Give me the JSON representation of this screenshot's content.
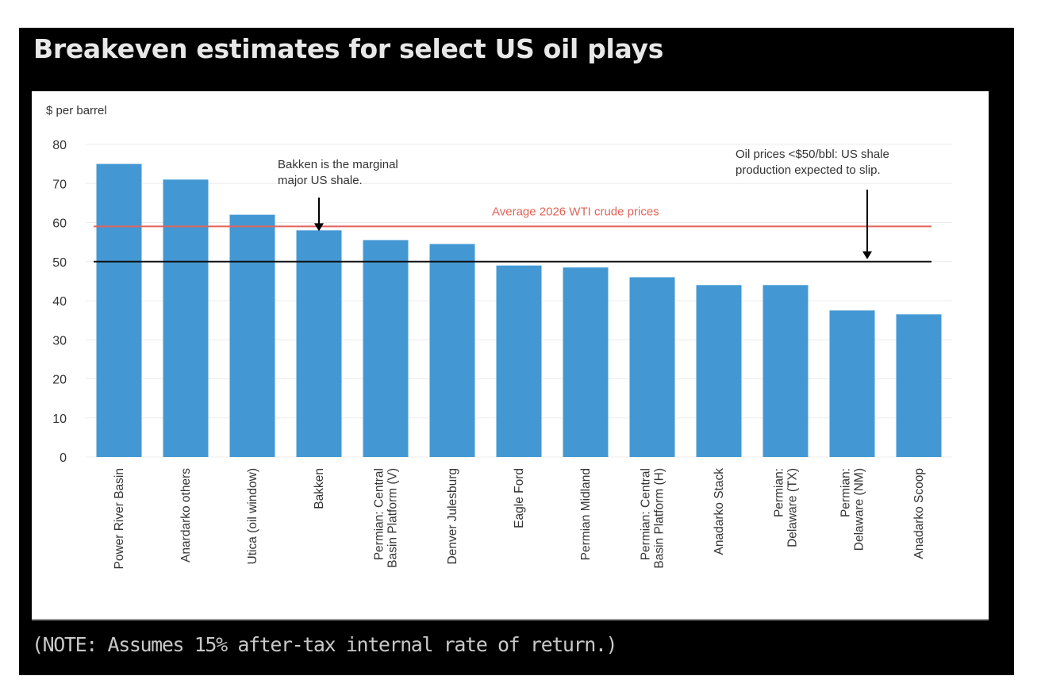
{
  "title": "Breakeven estimates for select US oil plays",
  "note": "(NOTE: Assumes 15% after-tax internal rate of return.)",
  "colors": {
    "bar": "#4398d4",
    "wti_line": "#e0645a",
    "threshold_line": "#111111",
    "gridline": "#ececec",
    "axis_text": "#333333",
    "annotation_text": "#333333",
    "wti_label_text": "#e0645a"
  },
  "chart_data": {
    "type": "bar",
    "title": "Breakeven estimates for select US oil plays",
    "xlabel": "",
    "ylabel": "$ per barrel",
    "ylim": [
      0,
      80
    ],
    "yticks": [
      0,
      10,
      20,
      30,
      40,
      50,
      60,
      70,
      80
    ],
    "grid": true,
    "legend": "none",
    "categories": [
      [
        "Power River Basin"
      ],
      [
        "Anardarko others"
      ],
      [
        "Utica (oil window)"
      ],
      [
        "Bakken"
      ],
      [
        "Permian: Central",
        "Basin Platform (V)"
      ],
      [
        "Denver Julesburg"
      ],
      [
        "Eagle Ford"
      ],
      [
        "Permian Midland"
      ],
      [
        "Permian: Central",
        "Basin Platform (H)"
      ],
      [
        "Anadarko Stack"
      ],
      [
        "Permian:",
        "Delaware (TX)"
      ],
      [
        "Permian:",
        "Delaware (NM)"
      ],
      [
        "Anadarko Scoop"
      ]
    ],
    "values": [
      75,
      71,
      62,
      58,
      55.5,
      54.5,
      49,
      48.5,
      46,
      44,
      44,
      37.5,
      36.5
    ],
    "reference_lines": [
      {
        "name": "wti",
        "value": 59,
        "label": "Average 2026 WTI crude prices",
        "color": "#e0645a"
      },
      {
        "name": "threshold",
        "value": 50,
        "label": "",
        "color": "#111111"
      }
    ],
    "annotations": [
      {
        "name": "bakken-annotation",
        "lines": [
          "Bakken is the marginal",
          "major US shale."
        ],
        "target_category_index": 3,
        "target_value": 58
      },
      {
        "name": "shale-slip-annotation",
        "lines": [
          "Oil prices <$50/bbl: US shale",
          "production expected to slip."
        ],
        "target_category_index": 11.4,
        "target_value": 50
      }
    ]
  }
}
